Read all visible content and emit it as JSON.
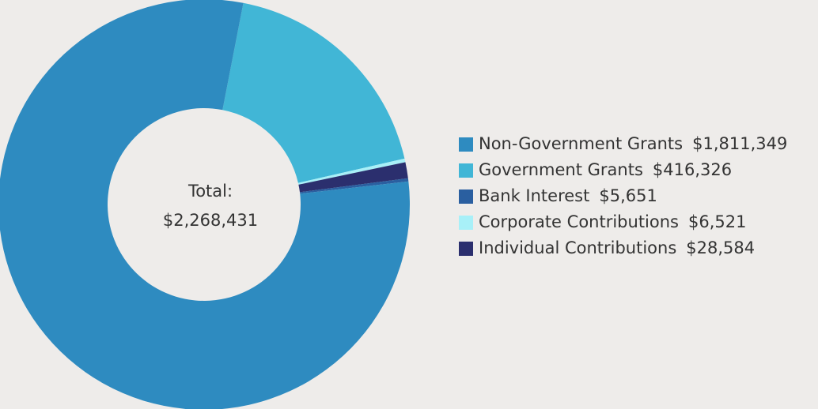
{
  "chart_data": {
    "type": "donut",
    "categories": [
      "Non-Government Grants",
      "Government Grants",
      "Bank Interest",
      "Corporate Contributions",
      "Individual Contributions"
    ],
    "values": [
      1811349,
      416326,
      5651,
      6521,
      28584
    ],
    "value_labels": [
      "$1,811,349",
      "$416,326",
      "$5,651",
      "$6,521",
      "$28,584"
    ],
    "colors": [
      "#2e8bc0",
      "#41b6d6",
      "#2a5fa0",
      "#a8f0f8",
      "#2b2f6e"
    ],
    "center_text": [
      "Total:",
      "$2,268,431"
    ],
    "legend": "right"
  }
}
